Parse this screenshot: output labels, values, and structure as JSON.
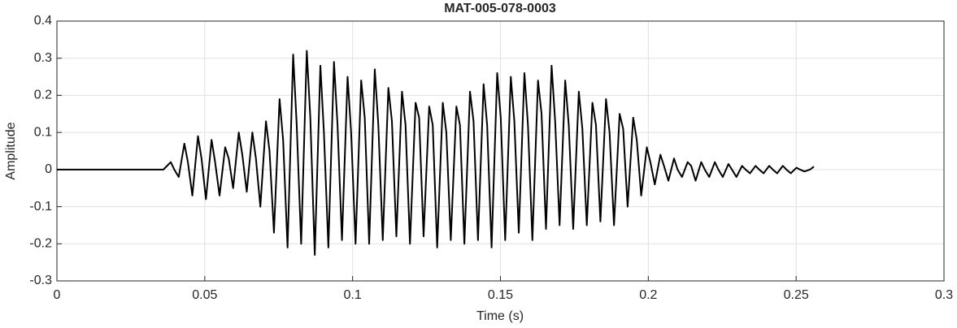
{
  "chart_data": {
    "type": "line",
    "title": "MAT-005-078-0003",
    "x_label": "Time (s)",
    "y_label": "Amplitude",
    "color": "#000000",
    "grid": true,
    "xlim": [
      0,
      0.3
    ],
    "xticks": [
      0,
      0.05,
      0.1,
      0.15,
      0.2,
      0.25,
      0.3
    ],
    "ylim": [
      -0.3,
      0.4
    ],
    "yticks": [
      -0.3,
      -0.2,
      -0.1,
      0,
      0.1,
      0.2,
      0.3,
      0.4
    ],
    "x": [
      0,
      0.03,
      0.036,
      0.0385,
      0.0397,
      0.0412,
      0.0431,
      0.0443,
      0.0458,
      0.0477,
      0.0489,
      0.0504,
      0.0523,
      0.0535,
      0.055,
      0.0569,
      0.0581,
      0.0596,
      0.0615,
      0.0627,
      0.0642,
      0.0661,
      0.0673,
      0.0688,
      0.0707,
      0.0719,
      0.0734,
      0.0753,
      0.0765,
      0.078,
      0.0799,
      0.0811,
      0.0826,
      0.0845,
      0.0857,
      0.0872,
      0.0891,
      0.0903,
      0.0918,
      0.0937,
      0.0949,
      0.0964,
      0.0983,
      0.0995,
      0.101,
      0.1029,
      0.1041,
      0.1056,
      0.1075,
      0.1087,
      0.1102,
      0.1121,
      0.1133,
      0.1148,
      0.1167,
      0.1179,
      0.1194,
      0.1213,
      0.1225,
      0.124,
      0.1259,
      0.1271,
      0.1286,
      0.1305,
      0.1317,
      0.1332,
      0.1351,
      0.1363,
      0.1378,
      0.1397,
      0.1409,
      0.1424,
      0.1443,
      0.1455,
      0.147,
      0.1489,
      0.1501,
      0.1516,
      0.1535,
      0.1547,
      0.1562,
      0.1581,
      0.1593,
      0.1608,
      0.1627,
      0.1639,
      0.1654,
      0.1673,
      0.1685,
      0.17,
      0.1719,
      0.1731,
      0.1746,
      0.1765,
      0.1777,
      0.1792,
      0.1811,
      0.1823,
      0.1838,
      0.1857,
      0.1869,
      0.1884,
      0.1903,
      0.1915,
      0.193,
      0.1949,
      0.1961,
      0.1976,
      0.1995,
      0.2007,
      0.2022,
      0.2041,
      0.2053,
      0.2068,
      0.2087,
      0.2099,
      0.2114,
      0.2133,
      0.2145,
      0.216,
      0.2179,
      0.2191,
      0.2206,
      0.2225,
      0.2237,
      0.2252,
      0.2271,
      0.2283,
      0.2298,
      0.2317,
      0.2329,
      0.2344,
      0.2363,
      0.2375,
      0.239,
      0.2409,
      0.2421,
      0.2436,
      0.2455,
      0.2467,
      0.2482,
      0.2501,
      0.2513,
      0.2528,
      0.2547,
      0.256
    ],
    "values": [
      0,
      0,
      0,
      0.02,
      0,
      -0.02,
      0.07,
      0.02,
      -0.07,
      0.09,
      0.03,
      -0.08,
      0.08,
      0.02,
      -0.07,
      0.06,
      0.03,
      -0.05,
      0.1,
      0.04,
      -0.06,
      0.1,
      0.03,
      -0.1,
      0.13,
      0.05,
      -0.17,
      0.19,
      0.08,
      -0.21,
      0.31,
      0.12,
      -0.2,
      0.32,
      0.14,
      -0.23,
      0.28,
      0.1,
      -0.21,
      0.29,
      0.12,
      -0.19,
      0.25,
      0.1,
      -0.2,
      0.24,
      0.14,
      -0.2,
      0.27,
      0.12,
      -0.19,
      0.22,
      0.13,
      -0.18,
      0.21,
      0.12,
      -0.2,
      0.18,
      0.14,
      -0.18,
      0.17,
      0.12,
      -0.21,
      0.18,
      0.1,
      -0.19,
      0.17,
      0.12,
      -0.2,
      0.21,
      0.13,
      -0.19,
      0.23,
      0.12,
      -0.21,
      0.26,
      0.14,
      -0.19,
      0.25,
      0.13,
      -0.17,
      0.26,
      0.12,
      -0.19,
      0.24,
      0.15,
      -0.16,
      0.28,
      0.13,
      -0.15,
      0.24,
      0.12,
      -0.16,
      0.21,
      0.11,
      -0.15,
      0.18,
      0.12,
      -0.14,
      0.19,
      0.1,
      -0.15,
      0.15,
      0.11,
      -0.1,
      0.14,
      0.08,
      -0.07,
      0.06,
      0.02,
      -0.04,
      0.04,
      0.01,
      -0.03,
      0.03,
      0,
      -0.02,
      0.02,
      0.01,
      -0.03,
      0.02,
      0,
      -0.02,
      0.02,
      0,
      -0.02,
      0.015,
      0,
      -0.02,
      0.01,
      0,
      -0.01,
      0.01,
      0,
      -0.01,
      0.01,
      0,
      -0.01,
      0.01,
      0,
      -0.01,
      0.005,
      0,
      -0.005,
      0,
      0.008
    ]
  }
}
